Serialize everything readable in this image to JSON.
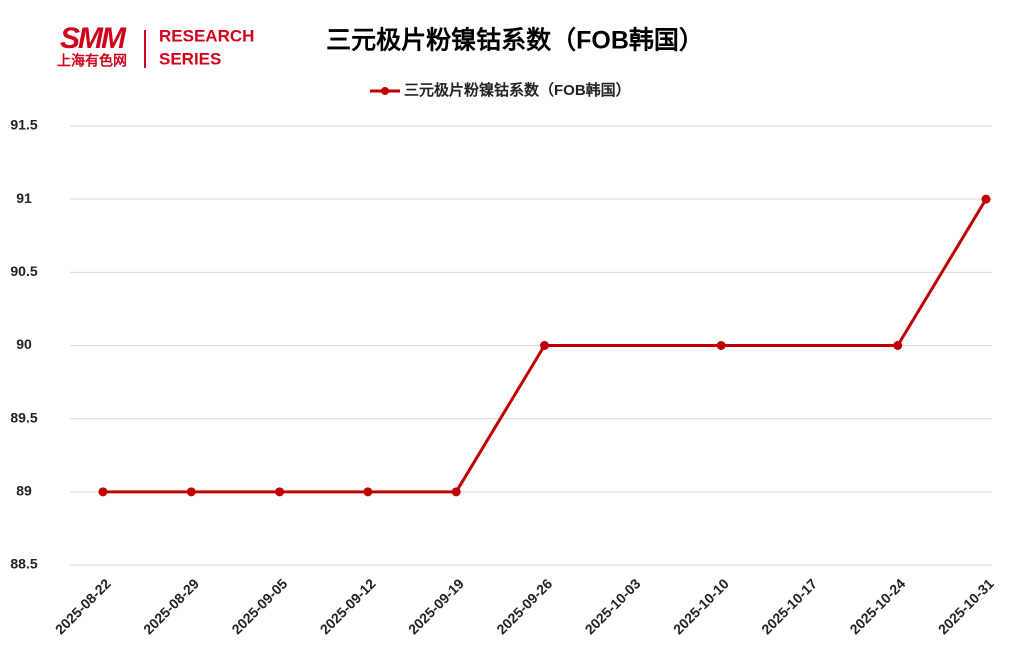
{
  "logo": {
    "mark": "SMM",
    "cn": "上海有色网",
    "line1": "RESEARCH",
    "line2": "SERIES"
  },
  "chart_data": {
    "type": "line",
    "title": "三元极片粉镍钴系数（FOB韩国）",
    "x": [
      "2025-08-22",
      "2025-08-29",
      "2025-09-05",
      "2025-09-12",
      "2025-09-19",
      "2025-09-26",
      "2025-10-10",
      "2025-10-24",
      "2025-10-31"
    ],
    "series": [
      {
        "name": "三元极片粉镍钴系数（FOB韩国）",
        "color": "#c00000",
        "values": [
          89,
          89,
          89,
          89,
          89,
          90,
          90,
          90,
          91
        ]
      }
    ],
    "xlim": [
      "2025-08-22",
      "2025-10-31"
    ],
    "xticks": [
      "2025-08-22",
      "2025-08-29",
      "2025-09-05",
      "2025-09-12",
      "2025-09-19",
      "2025-09-26",
      "2025-10-03",
      "2025-10-10",
      "2025-10-17",
      "2025-10-24",
      "2025-10-31"
    ],
    "ylim": [
      88.5,
      91.5
    ],
    "yticks": [
      88.5,
      89,
      89.5,
      90,
      90.5,
      91,
      91.5
    ],
    "grid": true
  }
}
